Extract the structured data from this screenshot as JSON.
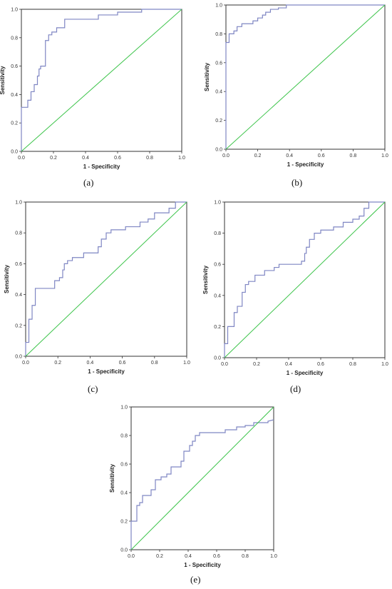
{
  "colors": {
    "roc_curve": "#7f86c3",
    "reference_line": "#3cc44a",
    "frame": "#333333"
  },
  "chart_data": [
    {
      "id": "a",
      "type": "line",
      "panel_label": "(a)",
      "xlabel": "1 - Specificity",
      "ylabel": "Sensitivity",
      "xlim": [
        0,
        1
      ],
      "ylim": [
        0,
        1
      ],
      "xticks": [
        "0.0",
        "0.2",
        "0.4",
        "0.6",
        "0.8",
        "1.0"
      ],
      "yticks": [
        "0.0",
        "0.2",
        "0.4",
        "0.6",
        "0.8",
        "1.0"
      ],
      "grid": false,
      "series": [
        {
          "role": "roc",
          "points": [
            [
              0,
              0
            ],
            [
              0,
              0.31
            ],
            [
              0.04,
              0.31
            ],
            [
              0.04,
              0.36
            ],
            [
              0.06,
              0.36
            ],
            [
              0.06,
              0.42
            ],
            [
              0.08,
              0.42
            ],
            [
              0.08,
              0.47
            ],
            [
              0.1,
              0.47
            ],
            [
              0.1,
              0.53
            ],
            [
              0.11,
              0.53
            ],
            [
              0.11,
              0.58
            ],
            [
              0.12,
              0.58
            ],
            [
              0.12,
              0.6
            ],
            [
              0.15,
              0.6
            ],
            [
              0.15,
              0.78
            ],
            [
              0.17,
              0.78
            ],
            [
              0.17,
              0.82
            ],
            [
              0.19,
              0.82
            ],
            [
              0.19,
              0.84
            ],
            [
              0.22,
              0.84
            ],
            [
              0.22,
              0.87
            ],
            [
              0.27,
              0.87
            ],
            [
              0.27,
              0.93
            ],
            [
              0.48,
              0.93
            ],
            [
              0.48,
              0.96
            ],
            [
              0.6,
              0.96
            ],
            [
              0.6,
              0.98
            ],
            [
              0.75,
              0.98
            ],
            [
              0.75,
              1
            ],
            [
              1,
              1
            ]
          ]
        },
        {
          "role": "reference",
          "points": [
            [
              0,
              0
            ],
            [
              1,
              1
            ]
          ]
        }
      ]
    },
    {
      "id": "b",
      "type": "line",
      "panel_label": "(b)",
      "xlabel": "1 - Specificity",
      "ylabel": "Sensitivity",
      "xlim": [
        0,
        1
      ],
      "ylim": [
        0,
        1
      ],
      "xticks": [
        "0.0",
        "0.2",
        "0.4",
        "0.6",
        "0.8",
        "1.0"
      ],
      "yticks": [
        "0.0",
        "0.2",
        "0.4",
        "0.6",
        "0.8",
        "1.0"
      ],
      "grid": false,
      "series": [
        {
          "role": "roc",
          "points": [
            [
              0,
              0
            ],
            [
              0,
              0.74
            ],
            [
              0.02,
              0.74
            ],
            [
              0.02,
              0.8
            ],
            [
              0.05,
              0.8
            ],
            [
              0.05,
              0.82
            ],
            [
              0.07,
              0.82
            ],
            [
              0.07,
              0.85
            ],
            [
              0.1,
              0.85
            ],
            [
              0.1,
              0.87
            ],
            [
              0.17,
              0.87
            ],
            [
              0.17,
              0.89
            ],
            [
              0.2,
              0.89
            ],
            [
              0.2,
              0.91
            ],
            [
              0.23,
              0.91
            ],
            [
              0.23,
              0.93
            ],
            [
              0.25,
              0.93
            ],
            [
              0.25,
              0.95
            ],
            [
              0.28,
              0.95
            ],
            [
              0.28,
              0.97
            ],
            [
              0.33,
              0.97
            ],
            [
              0.33,
              0.98
            ],
            [
              0.38,
              0.98
            ],
            [
              0.38,
              1
            ],
            [
              1,
              1
            ]
          ]
        },
        {
          "role": "reference",
          "points": [
            [
              0,
              0
            ],
            [
              1,
              1
            ]
          ]
        }
      ]
    },
    {
      "id": "c",
      "type": "line",
      "panel_label": "(c)",
      "xlabel": "1 - Specificity",
      "ylabel": "Sensitivity",
      "xlim": [
        0,
        1
      ],
      "ylim": [
        0,
        1
      ],
      "xticks": [
        "0.0",
        "0.2",
        "0.4",
        "0.6",
        "0.8",
        "1.0"
      ],
      "yticks": [
        "0.0",
        "0.2",
        "0.4",
        "0.6",
        "0.8",
        "1.0"
      ],
      "grid": false,
      "series": [
        {
          "role": "roc",
          "points": [
            [
              0,
              0
            ],
            [
              0,
              0.09
            ],
            [
              0.02,
              0.09
            ],
            [
              0.02,
              0.24
            ],
            [
              0.04,
              0.24
            ],
            [
              0.04,
              0.33
            ],
            [
              0.06,
              0.33
            ],
            [
              0.06,
              0.44
            ],
            [
              0.18,
              0.44
            ],
            [
              0.18,
              0.49
            ],
            [
              0.21,
              0.49
            ],
            [
              0.21,
              0.51
            ],
            [
              0.23,
              0.51
            ],
            [
              0.23,
              0.56
            ],
            [
              0.24,
              0.56
            ],
            [
              0.24,
              0.6
            ],
            [
              0.26,
              0.6
            ],
            [
              0.26,
              0.62
            ],
            [
              0.29,
              0.62
            ],
            [
              0.29,
              0.64
            ],
            [
              0.36,
              0.64
            ],
            [
              0.36,
              0.67
            ],
            [
              0.45,
              0.67
            ],
            [
              0.45,
              0.71
            ],
            [
              0.47,
              0.71
            ],
            [
              0.47,
              0.76
            ],
            [
              0.5,
              0.76
            ],
            [
              0.5,
              0.8
            ],
            [
              0.53,
              0.8
            ],
            [
              0.53,
              0.82
            ],
            [
              0.62,
              0.82
            ],
            [
              0.62,
              0.84
            ],
            [
              0.71,
              0.84
            ],
            [
              0.71,
              0.87
            ],
            [
              0.76,
              0.87
            ],
            [
              0.76,
              0.89
            ],
            [
              0.8,
              0.89
            ],
            [
              0.8,
              0.93
            ],
            [
              0.89,
              0.93
            ],
            [
              0.89,
              0.96
            ],
            [
              0.93,
              0.96
            ],
            [
              0.93,
              1
            ],
            [
              1,
              1
            ]
          ]
        },
        {
          "role": "reference",
          "points": [
            [
              0,
              0
            ],
            [
              1,
              1
            ]
          ]
        }
      ]
    },
    {
      "id": "d",
      "type": "line",
      "panel_label": "(d)",
      "xlabel": "1 - Specificity",
      "ylabel": "Sensitivity",
      "xlim": [
        0,
        1
      ],
      "ylim": [
        0,
        1
      ],
      "xticks": [
        "0.0",
        "0.2",
        "0.4",
        "0.6",
        "0.8",
        "1.0"
      ],
      "yticks": [
        "0.0",
        "0.2",
        "0.4",
        "0.6",
        "0.8",
        "1.0"
      ],
      "grid": false,
      "series": [
        {
          "role": "roc",
          "points": [
            [
              0,
              0
            ],
            [
              0,
              0.09
            ],
            [
              0.02,
              0.09
            ],
            [
              0.02,
              0.2
            ],
            [
              0.06,
              0.2
            ],
            [
              0.06,
              0.29
            ],
            [
              0.08,
              0.29
            ],
            [
              0.08,
              0.33
            ],
            [
              0.11,
              0.33
            ],
            [
              0.11,
              0.42
            ],
            [
              0.13,
              0.42
            ],
            [
              0.13,
              0.47
            ],
            [
              0.15,
              0.47
            ],
            [
              0.15,
              0.49
            ],
            [
              0.19,
              0.49
            ],
            [
              0.19,
              0.53
            ],
            [
              0.25,
              0.53
            ],
            [
              0.25,
              0.56
            ],
            [
              0.31,
              0.56
            ],
            [
              0.31,
              0.58
            ],
            [
              0.34,
              0.58
            ],
            [
              0.34,
              0.6
            ],
            [
              0.48,
              0.6
            ],
            [
              0.48,
              0.62
            ],
            [
              0.5,
              0.62
            ],
            [
              0.5,
              0.67
            ],
            [
              0.51,
              0.67
            ],
            [
              0.51,
              0.71
            ],
            [
              0.53,
              0.71
            ],
            [
              0.53,
              0.76
            ],
            [
              0.56,
              0.76
            ],
            [
              0.56,
              0.8
            ],
            [
              0.6,
              0.8
            ],
            [
              0.6,
              0.82
            ],
            [
              0.68,
              0.82
            ],
            [
              0.68,
              0.84
            ],
            [
              0.74,
              0.84
            ],
            [
              0.74,
              0.87
            ],
            [
              0.8,
              0.87
            ],
            [
              0.8,
              0.89
            ],
            [
              0.84,
              0.89
            ],
            [
              0.84,
              0.91
            ],
            [
              0.87,
              0.91
            ],
            [
              0.87,
              0.96
            ],
            [
              0.9,
              0.96
            ],
            [
              0.9,
              1
            ],
            [
              1,
              1
            ]
          ]
        },
        {
          "role": "reference",
          "points": [
            [
              0,
              0
            ],
            [
              1,
              1
            ]
          ]
        }
      ]
    },
    {
      "id": "e",
      "type": "line",
      "panel_label": "(e)",
      "xlabel": "1 - Specificity",
      "ylabel": "Sensitivity",
      "xlim": [
        0,
        1
      ],
      "ylim": [
        0,
        1
      ],
      "xticks": [
        "0.0",
        "0.2",
        "0.4",
        "0.6",
        "0.8",
        "1.0"
      ],
      "yticks": [
        "0.0",
        "0.2",
        "0.4",
        "0.6",
        "0.8",
        "1.0"
      ],
      "grid": false,
      "series": [
        {
          "role": "roc",
          "points": [
            [
              0,
              0
            ],
            [
              0,
              0.2
            ],
            [
              0.04,
              0.2
            ],
            [
              0.04,
              0.31
            ],
            [
              0.06,
              0.31
            ],
            [
              0.06,
              0.33
            ],
            [
              0.08,
              0.33
            ],
            [
              0.08,
              0.38
            ],
            [
              0.14,
              0.38
            ],
            [
              0.14,
              0.42
            ],
            [
              0.17,
              0.42
            ],
            [
              0.17,
              0.49
            ],
            [
              0.21,
              0.49
            ],
            [
              0.21,
              0.51
            ],
            [
              0.25,
              0.51
            ],
            [
              0.25,
              0.53
            ],
            [
              0.28,
              0.53
            ],
            [
              0.28,
              0.58
            ],
            [
              0.35,
              0.58
            ],
            [
              0.35,
              0.62
            ],
            [
              0.37,
              0.62
            ],
            [
              0.37,
              0.69
            ],
            [
              0.41,
              0.69
            ],
            [
              0.41,
              0.73
            ],
            [
              0.43,
              0.73
            ],
            [
              0.43,
              0.76
            ],
            [
              0.45,
              0.76
            ],
            [
              0.45,
              0.8
            ],
            [
              0.48,
              0.8
            ],
            [
              0.48,
              0.82
            ],
            [
              0.66,
              0.82
            ],
            [
              0.66,
              0.84
            ],
            [
              0.74,
              0.84
            ],
            [
              0.74,
              0.86
            ],
            [
              0.8,
              0.86
            ],
            [
              0.8,
              0.87
            ],
            [
              0.86,
              0.87
            ],
            [
              0.86,
              0.89
            ],
            [
              0.96,
              0.89
            ],
            [
              0.96,
              0.9
            ],
            [
              1,
              0.91
            ]
          ]
        },
        {
          "role": "reference",
          "points": [
            [
              0,
              0
            ],
            [
              1,
              1
            ]
          ]
        }
      ]
    }
  ]
}
